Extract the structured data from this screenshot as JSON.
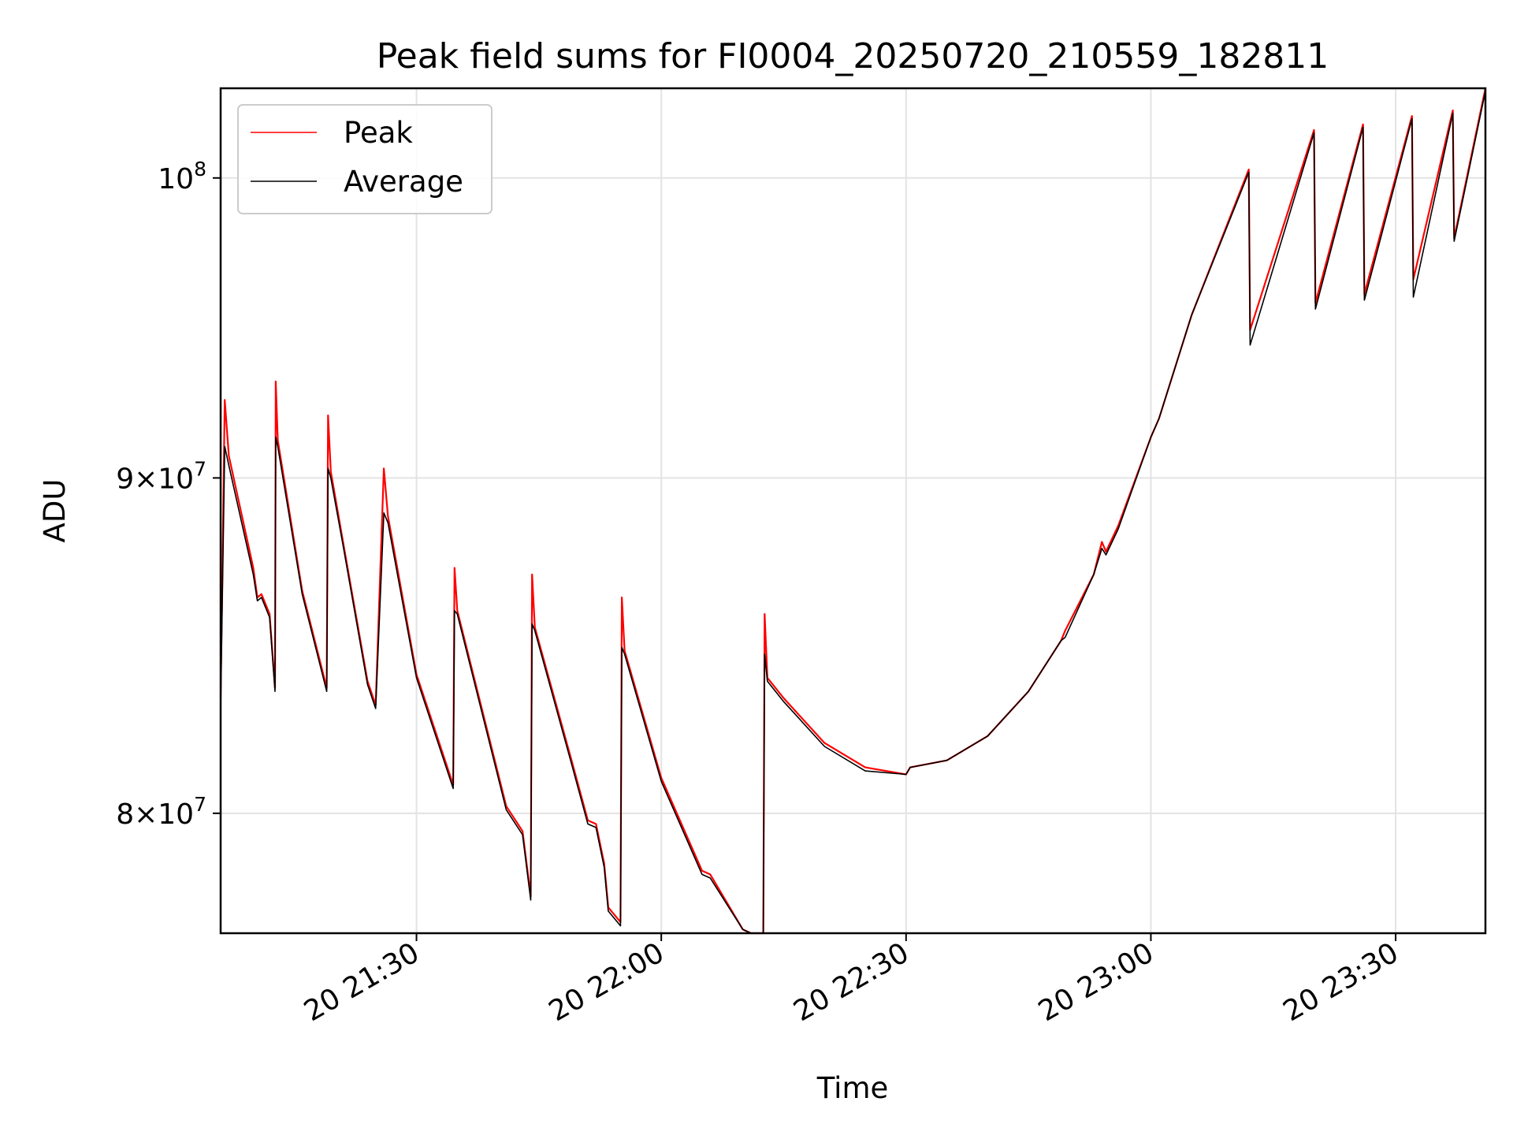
{
  "chart_data": {
    "type": "line",
    "title": "Peak field sums for FI0004_20250720_210559_182811",
    "xlabel": "Time",
    "ylabel": "ADU",
    "yscale": "log",
    "x_units": "minutes",
    "xlim": [
      "2025-07-20 21:06",
      "2025-07-20 23:41"
    ],
    "ylim": [
      76700000,
      103200000
    ],
    "grid": true,
    "legend_position": "top-left",
    "x_ticks": [
      {
        "value": "2025-07-20 21:30",
        "label": "20 21:30"
      },
      {
        "value": "2025-07-20 22:00",
        "label": "20 22:00"
      },
      {
        "value": "2025-07-20 22:30",
        "label": "20 22:30"
      },
      {
        "value": "2025-07-20 23:00",
        "label": "20 23:00"
      },
      {
        "value": "2025-07-20 23:30",
        "label": "20 23:30"
      }
    ],
    "y_ticks": [
      {
        "value": 80000000,
        "mantissa": "8",
        "base": "10",
        "exp": "7"
      },
      {
        "value": 90000000,
        "mantissa": "9",
        "base": "10",
        "exp": "7"
      },
      {
        "value": 100000000,
        "mantissa": "",
        "base": "10",
        "exp": "8"
      }
    ],
    "series": [
      {
        "name": "Peak",
        "color": "#ff0000",
        "points": [
          [
            "2025-07-20 21:06",
            83300000
          ],
          [
            "2025-07-20 21:06:30",
            92500000
          ],
          [
            "2025-07-20 21:07",
            90700000
          ],
          [
            "2025-07-20 21:10",
            87200000
          ],
          [
            "2025-07-20 21:10:30",
            86300000
          ],
          [
            "2025-07-20 21:11",
            86400000
          ],
          [
            "2025-07-20 21:12",
            85800000
          ],
          [
            "2025-07-20 21:12:40",
            83600000
          ],
          [
            "2025-07-20 21:12:45",
            93100000
          ],
          [
            "2025-07-20 21:13",
            91200000
          ],
          [
            "2025-07-20 21:16",
            86500000
          ],
          [
            "2025-07-20 21:19",
            83600000
          ],
          [
            "2025-07-20 21:19:10",
            92000000
          ],
          [
            "2025-07-20 21:19:30",
            90200000
          ],
          [
            "2025-07-20 21:21",
            88000000
          ],
          [
            "2025-07-20 21:24",
            83800000
          ],
          [
            "2025-07-20 21:25",
            83100000
          ],
          [
            "2025-07-20 21:26",
            90300000
          ],
          [
            "2025-07-20 21:26:30",
            88800000
          ],
          [
            "2025-07-20 21:30",
            84000000
          ],
          [
            "2025-07-20 21:34:30",
            80800000
          ],
          [
            "2025-07-20 21:34:40",
            87200000
          ],
          [
            "2025-07-20 21:35",
            85900000
          ],
          [
            "2025-07-20 21:41",
            80200000
          ],
          [
            "2025-07-20 21:43",
            79500000
          ],
          [
            "2025-07-20 21:44",
            77700000
          ],
          [
            "2025-07-20 21:44:10",
            87000000
          ],
          [
            "2025-07-20 21:44:30",
            85400000
          ],
          [
            "2025-07-20 21:49",
            81500000
          ],
          [
            "2025-07-20 21:51",
            79800000
          ],
          [
            "2025-07-20 21:52",
            79700000
          ],
          [
            "2025-07-20 21:53",
            78600000
          ],
          [
            "2025-07-20 21:53:30",
            77400000
          ],
          [
            "2025-07-20 21:55",
            77000000
          ],
          [
            "2025-07-20 21:55:10",
            86300000
          ],
          [
            "2025-07-20 21:55:30",
            84700000
          ],
          [
            "2025-07-20 22:00",
            81000000
          ],
          [
            "2025-07-20 22:05",
            78400000
          ],
          [
            "2025-07-20 22:06",
            78300000
          ],
          [
            "2025-07-20 22:10",
            76800000
          ],
          [
            "2025-07-20 22:11",
            76700000
          ],
          [
            "2025-07-20 22:12:30",
            76700000
          ],
          [
            "2025-07-20 22:12:40",
            85800000
          ],
          [
            "2025-07-20 22:13",
            83900000
          ],
          [
            "2025-07-20 22:15",
            83300000
          ],
          [
            "2025-07-20 22:20",
            82000000
          ],
          [
            "2025-07-20 22:25",
            81300000
          ],
          [
            "2025-07-20 22:30",
            81100000
          ],
          [
            "2025-07-20 22:30:30",
            81300000
          ],
          [
            "2025-07-20 22:35",
            81500000
          ],
          [
            "2025-07-20 22:40",
            82200000
          ],
          [
            "2025-07-20 22:45",
            83500000
          ],
          [
            "2025-07-20 22:49",
            85000000
          ],
          [
            "2025-07-20 22:49:30",
            85300000
          ],
          [
            "2025-07-20 22:53",
            87000000
          ],
          [
            "2025-07-20 22:54",
            88000000
          ],
          [
            "2025-07-20 22:54:30",
            87700000
          ],
          [
            "2025-07-20 22:56",
            88500000
          ],
          [
            "2025-07-20 23:00",
            91300000
          ],
          [
            "2025-07-20 23:01",
            91900000
          ],
          [
            "2025-07-20 23:05",
            95300000
          ],
          [
            "2025-07-20 23:12",
            100300000
          ],
          [
            "2025-07-20 23:12:10",
            94800000
          ],
          [
            "2025-07-20 23:20",
            101700000
          ],
          [
            "2025-07-20 23:20:10",
            95700000
          ],
          [
            "2025-07-20 23:26",
            101900000
          ],
          [
            "2025-07-20 23:26:10",
            96000000
          ],
          [
            "2025-07-20 23:32",
            102200000
          ],
          [
            "2025-07-20 23:32:10",
            96500000
          ],
          [
            "2025-07-20 23:37",
            102400000
          ],
          [
            "2025-07-20 23:37:10",
            97900000
          ],
          [
            "2025-07-20 23:41",
            103200000
          ]
        ]
      },
      {
        "name": "Average",
        "color": "#000000",
        "points": [
          [
            "2025-07-20 21:06",
            83100000
          ],
          [
            "2025-07-20 21:06:30",
            91000000
          ],
          [
            "2025-07-20 21:07",
            90400000
          ],
          [
            "2025-07-20 21:10",
            87000000
          ],
          [
            "2025-07-20 21:10:30",
            86200000
          ],
          [
            "2025-07-20 21:11",
            86300000
          ],
          [
            "2025-07-20 21:12",
            85700000
          ],
          [
            "2025-07-20 21:12:40",
            83500000
          ],
          [
            "2025-07-20 21:12:45",
            91300000
          ],
          [
            "2025-07-20 21:13",
            91000000
          ],
          [
            "2025-07-20 21:16",
            86400000
          ],
          [
            "2025-07-20 21:19",
            83500000
          ],
          [
            "2025-07-20 21:19:10",
            90300000
          ],
          [
            "2025-07-20 21:19:30",
            90000000
          ],
          [
            "2025-07-20 21:21",
            87900000
          ],
          [
            "2025-07-20 21:24",
            83700000
          ],
          [
            "2025-07-20 21:25",
            83000000
          ],
          [
            "2025-07-20 21:26",
            88900000
          ],
          [
            "2025-07-20 21:26:30",
            88600000
          ],
          [
            "2025-07-20 21:30",
            83900000
          ],
          [
            "2025-07-20 21:34:30",
            80700000
          ],
          [
            "2025-07-20 21:34:40",
            85900000
          ],
          [
            "2025-07-20 21:35",
            85800000
          ],
          [
            "2025-07-20 21:41",
            80100000
          ],
          [
            "2025-07-20 21:43",
            79400000
          ],
          [
            "2025-07-20 21:44",
            77600000
          ],
          [
            "2025-07-20 21:44:10",
            85500000
          ],
          [
            "2025-07-20 21:44:30",
            85300000
          ],
          [
            "2025-07-20 21:49",
            81400000
          ],
          [
            "2025-07-20 21:51",
            79700000
          ],
          [
            "2025-07-20 21:52",
            79600000
          ],
          [
            "2025-07-20 21:53",
            78500000
          ],
          [
            "2025-07-20 21:53:30",
            77300000
          ],
          [
            "2025-07-20 21:55",
            76900000
          ],
          [
            "2025-07-20 21:55:10",
            84800000
          ],
          [
            "2025-07-20 21:55:30",
            84600000
          ],
          [
            "2025-07-20 22:00",
            80900000
          ],
          [
            "2025-07-20 22:05",
            78300000
          ],
          [
            "2025-07-20 22:06",
            78200000
          ],
          [
            "2025-07-20 22:10",
            76800000
          ],
          [
            "2025-07-20 22:11",
            76700000
          ],
          [
            "2025-07-20 22:12:30",
            76700000
          ],
          [
            "2025-07-20 22:12:40",
            84600000
          ],
          [
            "2025-07-20 22:13",
            83800000
          ],
          [
            "2025-07-20 22:15",
            83200000
          ],
          [
            "2025-07-20 22:20",
            81900000
          ],
          [
            "2025-07-20 22:25",
            81200000
          ],
          [
            "2025-07-20 22:30",
            81100000
          ],
          [
            "2025-07-20 22:30:30",
            81300000
          ],
          [
            "2025-07-20 22:35",
            81500000
          ],
          [
            "2025-07-20 22:40",
            82200000
          ],
          [
            "2025-07-20 22:45",
            83500000
          ],
          [
            "2025-07-20 22:49",
            85000000
          ],
          [
            "2025-07-20 22:49:30",
            85100000
          ],
          [
            "2025-07-20 22:53",
            87000000
          ],
          [
            "2025-07-20 22:54",
            87800000
          ],
          [
            "2025-07-20 22:54:30",
            87600000
          ],
          [
            "2025-07-20 22:56",
            88400000
          ],
          [
            "2025-07-20 23:00",
            91300000
          ],
          [
            "2025-07-20 23:01",
            91900000
          ],
          [
            "2025-07-20 23:05",
            95300000
          ],
          [
            "2025-07-20 23:12",
            100200000
          ],
          [
            "2025-07-20 23:12:10",
            94300000
          ],
          [
            "2025-07-20 23:20",
            101600000
          ],
          [
            "2025-07-20 23:20:10",
            95500000
          ],
          [
            "2025-07-20 23:26",
            101800000
          ],
          [
            "2025-07-20 23:26:10",
            95800000
          ],
          [
            "2025-07-20 23:32",
            102100000
          ],
          [
            "2025-07-20 23:32:10",
            95900000
          ],
          [
            "2025-07-20 23:37",
            102300000
          ],
          [
            "2025-07-20 23:37:10",
            97800000
          ],
          [
            "2025-07-20 23:41",
            103100000
          ]
        ]
      }
    ]
  }
}
